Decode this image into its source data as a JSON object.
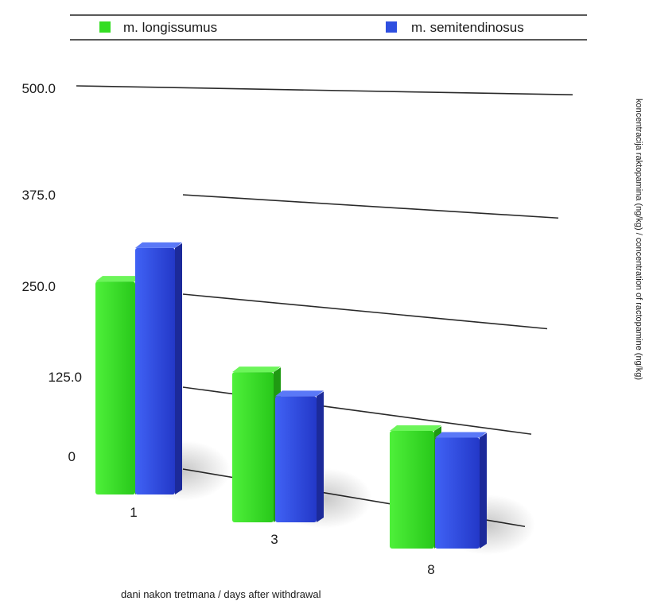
{
  "chart_data": {
    "type": "bar",
    "categories": [
      "1",
      "3",
      "8"
    ],
    "series": [
      {
        "name": "m. longissumus",
        "values": [
          380,
          268,
          210
        ],
        "color": "#33dd22"
      },
      {
        "name": "m. semitendinosus",
        "values": [
          440,
          225,
          198
        ],
        "color": "#2e4fe0"
      }
    ],
    "yticks": [
      "0",
      "125.0",
      "250.0",
      "375.0",
      "500.0"
    ],
    "ylim": [
      0,
      500
    ],
    "xlabel": "dani nakon tretmana / days after withdrawal",
    "ylabel": "koncentracija raktopamina (ng/kg) / concentration of ractopamine (ng/kg)",
    "legend_position": "top",
    "grid": true,
    "style": "3d-perspective"
  }
}
